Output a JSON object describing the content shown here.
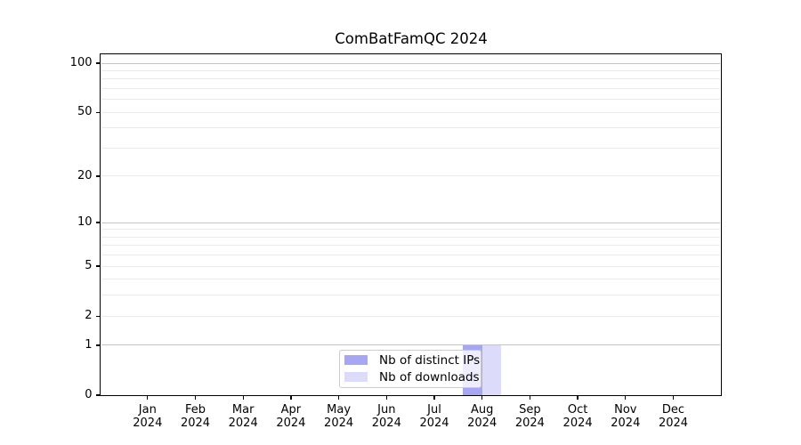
{
  "chart_data": {
    "type": "bar",
    "title": "ComBatFamQC 2024",
    "xlabel": "",
    "ylabel": "",
    "categories": [
      "Jan 2024",
      "Feb 2024",
      "Mar 2024",
      "Apr 2024",
      "May 2024",
      "Jun 2024",
      "Jul 2024",
      "Aug 2024",
      "Sep 2024",
      "Oct 2024",
      "Nov 2024",
      "Dec 2024"
    ],
    "series": [
      {
        "name": "Nb of distinct IPs",
        "color": "#a6a6f2",
        "values": [
          0,
          0,
          0,
          0,
          0,
          0,
          0,
          1,
          0,
          0,
          0,
          0
        ]
      },
      {
        "name": "Nb of downloads",
        "color": "#dcdcfa",
        "values": [
          0,
          0,
          0,
          0,
          0,
          0,
          0,
          1,
          0,
          0,
          0,
          0
        ]
      }
    ],
    "yscale": "log1p",
    "ylim": [
      0,
      101
    ],
    "yticks": [
      0,
      1,
      2,
      5,
      10,
      20,
      50,
      100
    ],
    "major_gridlines": [
      1,
      10,
      100
    ],
    "minor_gridlines": [
      2,
      3,
      4,
      5,
      6,
      7,
      8,
      9,
      20,
      30,
      40,
      50,
      60,
      70,
      80,
      90
    ],
    "grid": "on",
    "legend_position": "lower center"
  }
}
